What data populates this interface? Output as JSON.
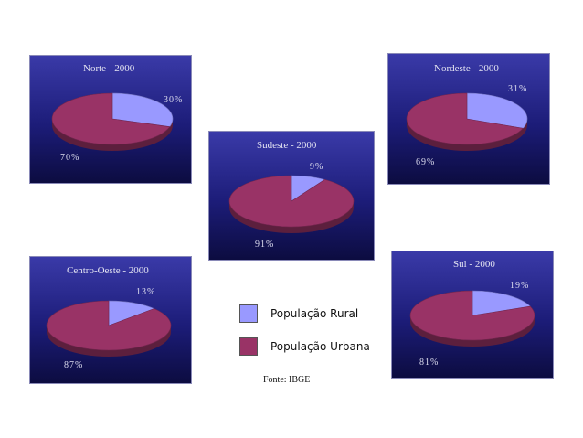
{
  "chart_data": [
    {
      "type": "pie",
      "title": "Norte - 2000",
      "categories": [
        "População Rural",
        "População Urbana"
      ],
      "values": [
        30,
        70
      ],
      "labels": [
        "30%",
        "70%"
      ]
    },
    {
      "type": "pie",
      "title": "Nordeste - 2000",
      "categories": [
        "População Rural",
        "População Urbana"
      ],
      "values": [
        31,
        69
      ],
      "labels": [
        "31%",
        "69%"
      ]
    },
    {
      "type": "pie",
      "title": "Sudeste - 2000",
      "categories": [
        "População Rural",
        "População Urbana"
      ],
      "values": [
        9,
        91
      ],
      "labels": [
        "9%",
        "91%"
      ]
    },
    {
      "type": "pie",
      "title": "Centro-Oeste - 2000",
      "categories": [
        "População Rural",
        "População Urbana"
      ],
      "values": [
        13,
        87
      ],
      "labels": [
        "13%",
        "87%"
      ]
    },
    {
      "type": "pie",
      "title": "Sul - 2000",
      "categories": [
        "População Rural",
        "População Urbana"
      ],
      "values": [
        19,
        81
      ],
      "labels": [
        "19%",
        "81%"
      ]
    }
  ],
  "legend": [
    {
      "label": "População Rural",
      "color": "#9999ff"
    },
    {
      "label": "População Urbana",
      "color": "#993366"
    }
  ],
  "source": "Fonte: IBGE"
}
